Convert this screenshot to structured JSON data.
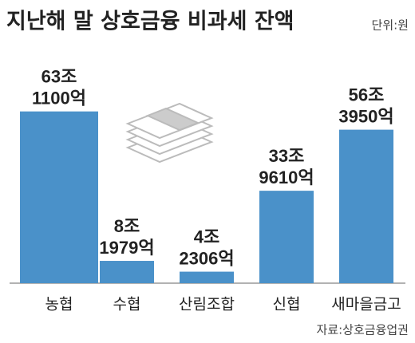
{
  "chart_data": {
    "type": "bar",
    "title": "지난해 말 상호금융 비과세 잔액",
    "unit": "단위:원",
    "source": "자료:상호금융업권",
    "categories": [
      "농협",
      "수협",
      "산림조합",
      "신협",
      "새마을금고"
    ],
    "values": [
      631100,
      81979,
      42306,
      339610,
      563950
    ],
    "value_labels": [
      [
        "63조",
        "1100억"
      ],
      [
        "8조",
        "1979억"
      ],
      [
        "4조",
        "2306억"
      ],
      [
        "33조",
        "9610억"
      ],
      [
        "56조",
        "3950억"
      ]
    ],
    "color": "#4a91c9",
    "ylim": [
      0,
      850000
    ]
  }
}
